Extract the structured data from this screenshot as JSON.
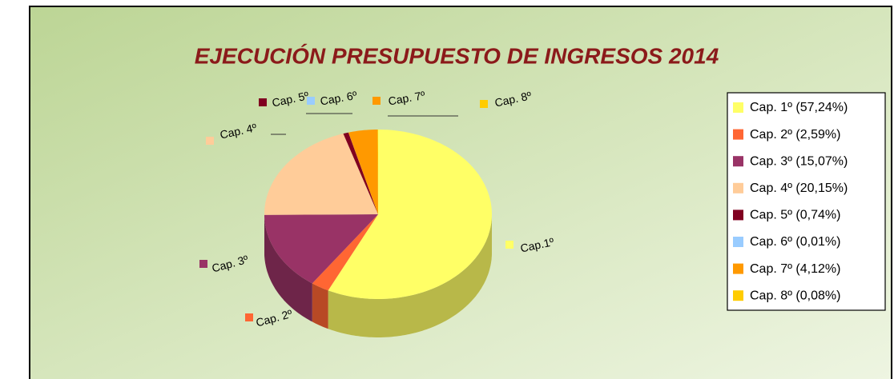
{
  "chart_data": {
    "type": "pie",
    "title": "EJECUCIÓN  PRESUPUESTO  DE INGRESOS 2014",
    "categories": [
      "Cap.1º",
      "Cap. 2º",
      "Cap. 3º",
      "Cap. 4º",
      "Cap. 5º",
      "Cap. 6º",
      "Cap. 7º",
      "Cap. 8º"
    ],
    "values": [
      57.24,
      2.59,
      15.07,
      20.15,
      0.74,
      0.01,
      4.12,
      0.08
    ],
    "value_labels": [
      "Cap. 1º (57,24%)",
      "Cap. 2º (2,59%)",
      "Cap. 3º (15,07%)",
      "Cap. 4º (20,15%)",
      "Cap. 5º (0,74%)",
      "Cap. 6º (0,01%)",
      "Cap. 7º (4,12%)",
      "Cap. 8º (0,08%)"
    ],
    "colors": [
      "#ffff66",
      "#ff6633",
      "#993366",
      "#ffcc99",
      "#800020",
      "#99ccff",
      "#ff9900",
      "#ffcc00"
    ],
    "legend": "right"
  }
}
